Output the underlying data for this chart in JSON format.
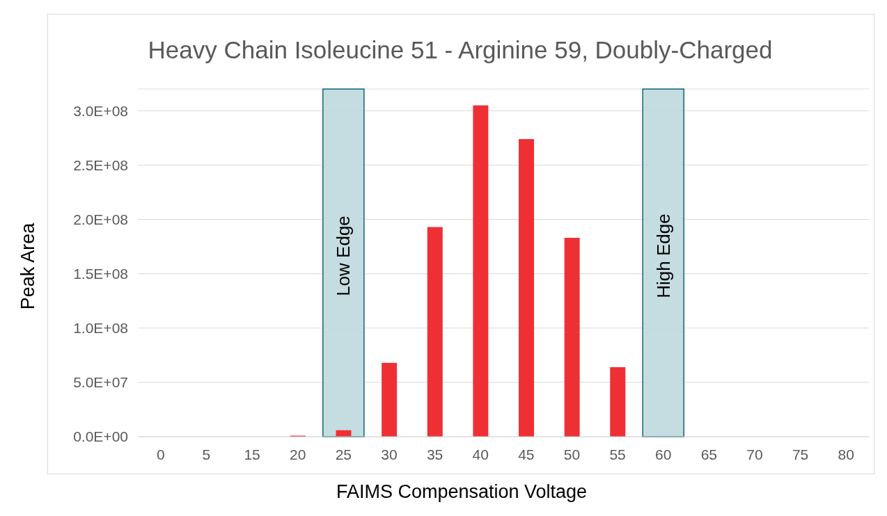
{
  "chart_data": {
    "type": "bar",
    "title": "Heavy Chain Isoleucine 51 - Arginine 59, Doubly-Charged",
    "xlabel": "FAIMS Compensation Voltage",
    "ylabel": "Peak Area",
    "categories": [
      "0",
      "5",
      "15",
      "20",
      "25",
      "30",
      "35",
      "40",
      "45",
      "50",
      "55",
      "60",
      "65",
      "70",
      "75",
      "80"
    ],
    "values": [
      0,
      0,
      0,
      1000000,
      6000000,
      68000000,
      193000000,
      305000000,
      274000000,
      183000000,
      64000000,
      0,
      0,
      0,
      0,
      0
    ],
    "color": "#ee3035",
    "ylim": [
      0,
      320000000
    ],
    "yticks": [
      {
        "value": 0,
        "label": "0.0E+00"
      },
      {
        "value": 50000000,
        "label": "5.0E+07"
      },
      {
        "value": 100000000,
        "label": "1.0E+08"
      },
      {
        "value": 150000000,
        "label": "1.5E+08"
      },
      {
        "value": 200000000,
        "label": "2.0E+08"
      },
      {
        "value": 250000000,
        "label": "2.5E+08"
      },
      {
        "value": 300000000,
        "label": "3.0E+08"
      }
    ],
    "grid": "y",
    "bands": [
      {
        "axis": "x",
        "from": "25",
        "to": "25",
        "label": "Low Edge",
        "color": "#bfd9dd"
      },
      {
        "axis": "x",
        "from": "60",
        "to": "60",
        "label": "High Edge",
        "color": "#bfd9dd"
      }
    ]
  }
}
